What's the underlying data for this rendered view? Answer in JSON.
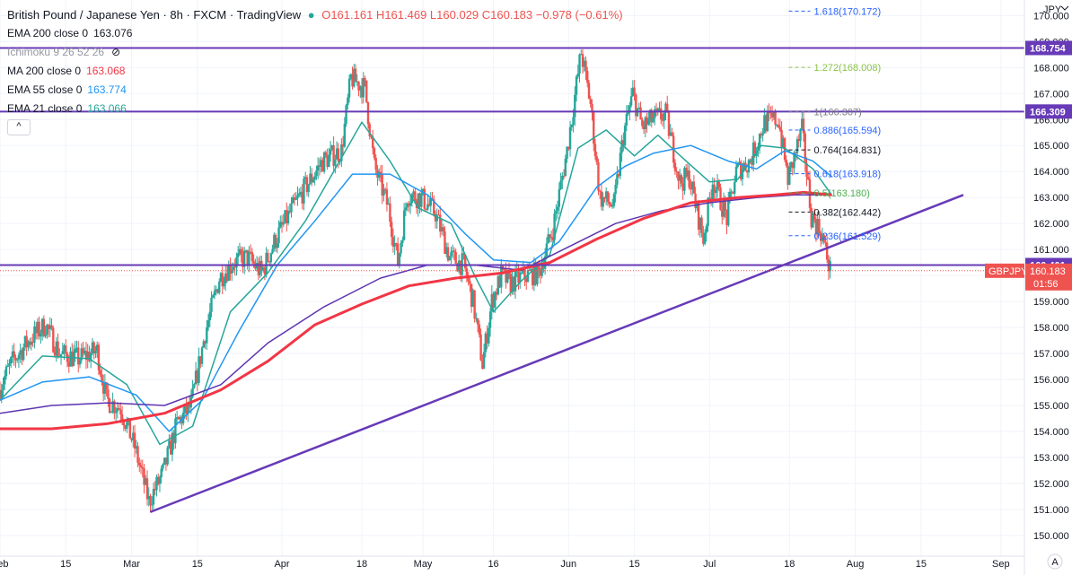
{
  "header": {
    "symbol": "British Pound / Japanese Yen · 8h · FXCM · TradingView",
    "ohlc": "O161.161 H161.469 L160.029 C160.183 −0.978 (−0.61%)"
  },
  "indicators": [
    {
      "label": "EMA 200 close 0",
      "value": "163.076",
      "color": "#131722"
    },
    {
      "label": "Ichimoku 9 26 52 26",
      "value": "",
      "color": "#9598a1"
    },
    {
      "label": "MA 200 close 0",
      "value": "163.068",
      "color": "#f23645"
    },
    {
      "label": "EMA 55 close 0",
      "value": "163.774",
      "color": "#2196f3"
    },
    {
      "label": "EMA 21 close 0",
      "value": "163.066",
      "color": "#26a69a"
    }
  ],
  "collapse_label": "^",
  "colors": {
    "up": "#26a69a",
    "down": "#ef5350",
    "trend": "#673ab7",
    "ma200": "#f23645",
    "ema200": "#5e35b1",
    "ema55": "#2196f3",
    "ema21": "#26a69a"
  },
  "chart_data": {
    "type": "candlestick",
    "currency_label": "JPY",
    "y_ticks": [
      150.0,
      151.0,
      152.0,
      153.0,
      154.0,
      155.0,
      156.0,
      157.0,
      158.0,
      159.0,
      160.0,
      161.0,
      162.0,
      163.0,
      164.0,
      165.0,
      166.0,
      167.0,
      168.0,
      169.0,
      170.0
    ],
    "ylim": [
      149.2,
      170.6
    ],
    "x_ticks": [
      "Feb",
      "15",
      "Mar",
      "15",
      "Apr",
      "18",
      "May",
      "16",
      "Jun",
      "15",
      "Jul",
      "18",
      "Aug",
      "15",
      "Sep"
    ],
    "x_tick_days": [
      1,
      15,
      29,
      43,
      61,
      78,
      91,
      106,
      122,
      136,
      152,
      169,
      183,
      197,
      214
    ],
    "xlim_days": [
      1,
      219
    ],
    "horizontal_levels": [
      {
        "value": 168.754,
        "label": "168.754"
      },
      {
        "value": 166.309,
        "label": "166.309"
      },
      {
        "value": 160.401,
        "label": "160.401"
      }
    ],
    "trendline": {
      "from": {
        "day": 33,
        "value": 150.9
      },
      "to": {
        "day": 206,
        "value": 163.1
      }
    },
    "fib_levels": [
      {
        "ratio": "1.618",
        "value": 170.172,
        "color": "#2962ff"
      },
      {
        "ratio": "1.272",
        "value": 168.008,
        "color": "#8bc34a"
      },
      {
        "ratio": "1",
        "value": 166.307,
        "color": "#787b86"
      },
      {
        "ratio": "0.886",
        "value": 165.594,
        "color": "#2962ff"
      },
      {
        "ratio": "0.764",
        "value": 164.831,
        "color": "#131722"
      },
      {
        "ratio": "0.618",
        "value": 163.918,
        "color": "#2962ff"
      },
      {
        "ratio": "0.5",
        "value": 163.18,
        "color": "#4caf50"
      },
      {
        "ratio": "0.382",
        "value": 162.442,
        "color": "#131722"
      },
      {
        "ratio": "0.236",
        "value": 161.529,
        "color": "#2962ff"
      }
    ],
    "fib_start_day": 170,
    "current_price": {
      "value": 160.183,
      "label": "GBPJPY",
      "price": "160.183",
      "countdown": "01:56"
    },
    "price_path": [
      [
        1,
        155.6
      ],
      [
        4,
        156.7
      ],
      [
        8,
        157.6
      ],
      [
        11,
        158.1
      ],
      [
        14,
        157.0
      ],
      [
        18,
        156.8
      ],
      [
        22,
        157.1
      ],
      [
        24,
        155.2
      ],
      [
        27,
        154.9
      ],
      [
        30,
        153.4
      ],
      [
        33,
        151.3
      ],
      [
        36,
        152.4
      ],
      [
        39,
        154.3
      ],
      [
        42,
        155.0
      ],
      [
        45,
        157.8
      ],
      [
        48,
        159.9
      ],
      [
        51,
        160.5
      ],
      [
        54,
        160.7
      ],
      [
        57,
        160.1
      ],
      [
        60,
        161.4
      ],
      [
        63,
        162.4
      ],
      [
        66,
        163.3
      ],
      [
        70,
        164.4
      ],
      [
        74,
        164.8
      ],
      [
        76,
        167.6
      ],
      [
        79,
        167.2
      ],
      [
        81,
        164.2
      ],
      [
        84,
        162.6
      ],
      [
        86,
        160.5
      ],
      [
        88,
        163.1
      ],
      [
        91,
        163.0
      ],
      [
        94,
        162.4
      ],
      [
        97,
        160.7
      ],
      [
        100,
        160.4
      ],
      [
        102,
        159.0
      ],
      [
        104,
        156.6
      ],
      [
        106,
        159.0
      ],
      [
        108,
        160.0
      ],
      [
        110,
        159.7
      ],
      [
        113,
        160.0
      ],
      [
        116,
        160.1
      ],
      [
        119,
        161.8
      ],
      [
        122,
        164.8
      ],
      [
        125,
        168.6
      ],
      [
        127,
        166.6
      ],
      [
        129,
        163.0
      ],
      [
        132,
        162.7
      ],
      [
        134,
        165.4
      ],
      [
        136,
        167.0
      ],
      [
        138,
        165.7
      ],
      [
        140,
        166.0
      ],
      [
        143,
        166.2
      ],
      [
        146,
        163.6
      ],
      [
        148,
        163.8
      ],
      [
        151,
        161.4
      ],
      [
        153,
        163.7
      ],
      [
        156,
        162.2
      ],
      [
        158,
        164.0
      ],
      [
        161,
        164.4
      ],
      [
        164,
        165.9
      ],
      [
        167,
        166.0
      ],
      [
        169,
        163.7
      ],
      [
        172,
        165.6
      ],
      [
        174,
        162.3
      ],
      [
        176,
        161.7
      ],
      [
        178,
        160.2
      ]
    ],
    "series": [
      {
        "name": "EMA 21",
        "values": [
          [
            1,
            155.2
          ],
          [
            10,
            156.9
          ],
          [
            20,
            156.8
          ],
          [
            28,
            155.8
          ],
          [
            35,
            153.5
          ],
          [
            42,
            154.2
          ],
          [
            50,
            158.6
          ],
          [
            58,
            160.1
          ],
          [
            66,
            162.1
          ],
          [
            72,
            164.0
          ],
          [
            78,
            165.9
          ],
          [
            84,
            164.4
          ],
          [
            90,
            162.6
          ],
          [
            97,
            162.0
          ],
          [
            102,
            160.0
          ],
          [
            106,
            158.6
          ],
          [
            112,
            159.8
          ],
          [
            118,
            160.8
          ],
          [
            124,
            164.9
          ],
          [
            130,
            165.6
          ],
          [
            136,
            164.6
          ],
          [
            141,
            165.4
          ],
          [
            147,
            164.4
          ],
          [
            152,
            163.6
          ],
          [
            158,
            163.7
          ],
          [
            163,
            165.0
          ],
          [
            168,
            164.9
          ],
          [
            174,
            164.1
          ],
          [
            178,
            163.1
          ]
        ]
      },
      {
        "name": "EMA 55",
        "values": [
          [
            1,
            155.2
          ],
          [
            10,
            155.9
          ],
          [
            20,
            156.1
          ],
          [
            30,
            155.4
          ],
          [
            37,
            154.0
          ],
          [
            44,
            155.2
          ],
          [
            52,
            157.9
          ],
          [
            60,
            160.4
          ],
          [
            68,
            162.1
          ],
          [
            76,
            163.9
          ],
          [
            84,
            163.9
          ],
          [
            92,
            163.1
          ],
          [
            100,
            161.6
          ],
          [
            106,
            160.6
          ],
          [
            114,
            160.5
          ],
          [
            120,
            161.3
          ],
          [
            128,
            163.4
          ],
          [
            134,
            164.2
          ],
          [
            140,
            164.7
          ],
          [
            148,
            165.0
          ],
          [
            156,
            164.4
          ],
          [
            162,
            164.1
          ],
          [
            168,
            164.8
          ],
          [
            174,
            164.4
          ],
          [
            178,
            163.8
          ]
        ]
      },
      {
        "name": "EMA 200",
        "values": [
          [
            1,
            154.7
          ],
          [
            12,
            155.0
          ],
          [
            24,
            155.1
          ],
          [
            36,
            155.0
          ],
          [
            48,
            155.8
          ],
          [
            58,
            157.4
          ],
          [
            70,
            158.8
          ],
          [
            82,
            159.9
          ],
          [
            92,
            160.4
          ],
          [
            102,
            160.4
          ],
          [
            112,
            160.2
          ],
          [
            122,
            161.1
          ],
          [
            132,
            162.0
          ],
          [
            142,
            162.5
          ],
          [
            152,
            162.8
          ],
          [
            162,
            163.0
          ],
          [
            170,
            163.1
          ],
          [
            178,
            163.1
          ]
        ]
      },
      {
        "name": "MA 200",
        "values": [
          [
            1,
            154.1
          ],
          [
            12,
            154.1
          ],
          [
            24,
            154.3
          ],
          [
            36,
            154.7
          ],
          [
            48,
            155.6
          ],
          [
            58,
            156.7
          ],
          [
            68,
            158.1
          ],
          [
            78,
            158.9
          ],
          [
            88,
            159.6
          ],
          [
            98,
            159.9
          ],
          [
            108,
            160.1
          ],
          [
            118,
            160.5
          ],
          [
            128,
            161.4
          ],
          [
            138,
            162.2
          ],
          [
            148,
            162.8
          ],
          [
            158,
            163.0
          ],
          [
            166,
            163.1
          ],
          [
            172,
            163.2
          ],
          [
            178,
            163.1
          ]
        ]
      }
    ]
  }
}
